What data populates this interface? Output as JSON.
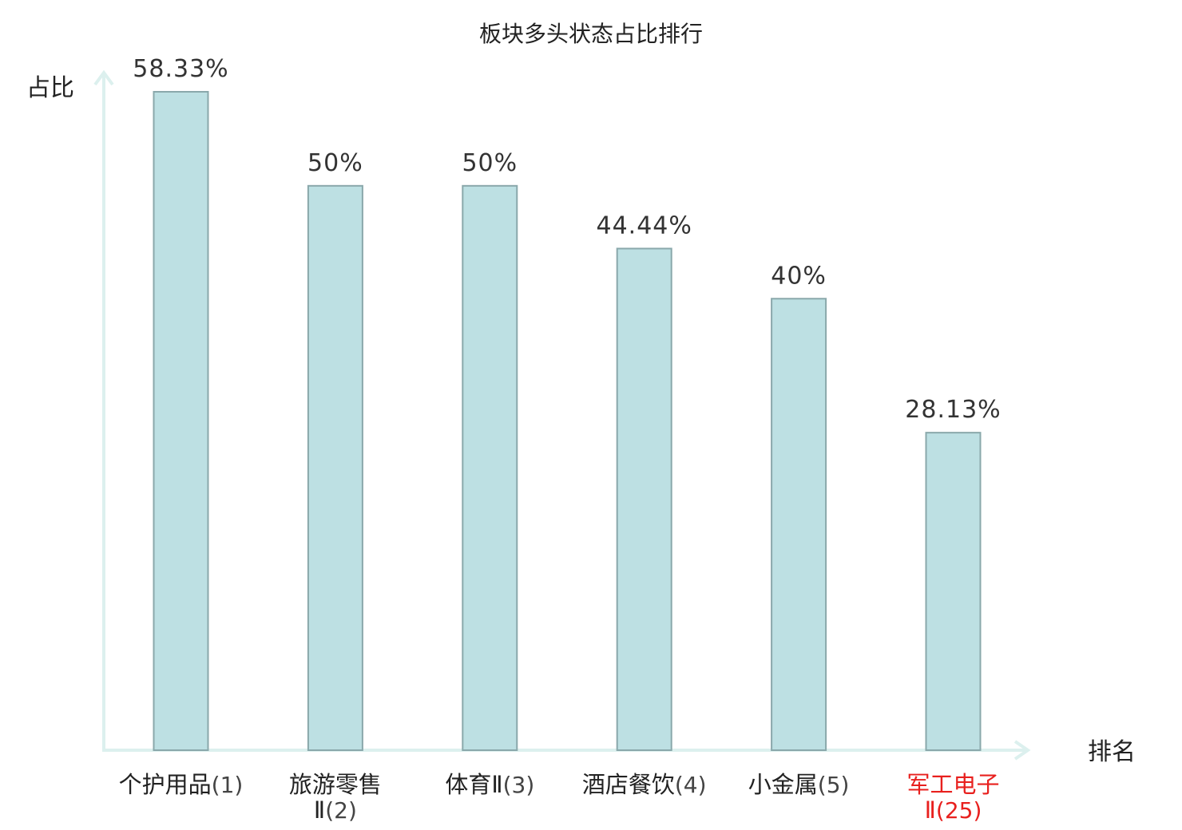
{
  "chart_data": {
    "type": "bar",
    "title": "板块多头状态占比排行",
    "ylabel": "占比",
    "xlabel": "排名",
    "ylim": [
      0,
      60
    ],
    "grid": false,
    "categories": [
      {
        "name": "个护用品",
        "rank": "(1)",
        "lines": [
          "个护用品(1)"
        ],
        "highlight": false
      },
      {
        "name": "旅游零售Ⅱ",
        "rank": "(2)",
        "lines": [
          "旅游零售",
          "Ⅱ(2)"
        ],
        "highlight": false
      },
      {
        "name": "体育Ⅱ",
        "rank": "(3)",
        "lines": [
          "体育Ⅱ(3)"
        ],
        "highlight": false
      },
      {
        "name": "酒店餐饮",
        "rank": "(4)",
        "lines": [
          "酒店餐饮(4)"
        ],
        "highlight": false
      },
      {
        "name": "小金属",
        "rank": "(5)",
        "lines": [
          "小金属(5)"
        ],
        "highlight": false
      },
      {
        "name": "军工电子Ⅱ",
        "rank": "(25)",
        "lines": [
          "军工电子",
          "Ⅱ(25)"
        ],
        "highlight": true
      }
    ],
    "values": [
      58.33,
      50,
      50,
      44.44,
      40,
      28.13
    ],
    "value_labels": [
      "58.33%",
      "50%",
      "50%",
      "44.44%",
      "40%",
      "28.13%"
    ],
    "colors": {
      "bar_fill": "#bde0e3",
      "bar_stroke": "#8aa8ab",
      "axis": "#dcf0ee",
      "highlight_text": "#e8201e"
    }
  }
}
